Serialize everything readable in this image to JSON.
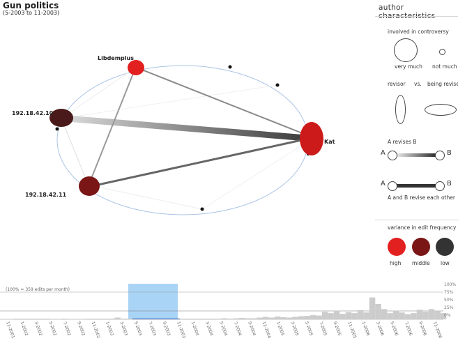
{
  "header": {
    "title": "Gun politics",
    "subtitle": "(5-2003 to 11-2003)"
  },
  "graph": {
    "nodes": [
      {
        "name": "Libdemplus",
        "color": "#e32020",
        "involvement": "very much"
      },
      {
        "name": "192.18.42.10",
        "color": "#4a1a1a",
        "involvement": "very much"
      },
      {
        "name": "Kat",
        "color": "#cc1a1a",
        "involvement": "very much"
      },
      {
        "name": "192.18.42.11",
        "color": "#7a1616",
        "involvement": "very much"
      }
    ],
    "edges": [
      {
        "from": "192.18.42.10",
        "to": "Kat",
        "type": "mutual"
      },
      {
        "from": "192.18.42.11",
        "to": "Kat",
        "type": "mutual"
      },
      {
        "from": "Libdemplus",
        "to": "Kat",
        "type": "one-way"
      },
      {
        "from": "Libdemplus",
        "to": "192.18.42.11",
        "type": "one-way"
      },
      {
        "from": "192.18.42.10",
        "to": "192.18.42.11",
        "type": "faint"
      },
      {
        "from": "Libdemplus",
        "to": "192.18.42.10",
        "type": "faint"
      }
    ]
  },
  "legend": {
    "title": "author characteristics",
    "involved_title": "involved in controversy",
    "very_much": "very much",
    "not_much": "not much",
    "revisor": "revisor",
    "vs": "vs.",
    "being_revised": "being revised",
    "a_revises_b": "A revises B",
    "a": "A",
    "b": "B",
    "mutual": "A and B revise each other",
    "variance_title": "variance in edit frequency",
    "high": "high",
    "middle": "middle",
    "low": "low",
    "colors": {
      "high": "#e32020",
      "middle": "#7a1616",
      "low": "#333333"
    }
  },
  "timeline": {
    "scale_label": "(100% = 359 edits per month)",
    "percent_labels": [
      "100%",
      "75%",
      "50%",
      "25%",
      "0%"
    ],
    "selection": "5-2003 to 11-2003",
    "tick_labels": [
      "11-2001",
      "1-2002",
      "3-2002",
      "5-2002",
      "7-2002",
      "9-2002",
      "11-2002",
      "1-2003",
      "3-2003",
      "5-2003",
      "7-2003",
      "9-2003",
      "11-2003",
      "1-2004",
      "3-2004",
      "5-2004",
      "7-2004",
      "9-2004",
      "11-2004",
      "1-2005",
      "3-2005",
      "5-2005",
      "7-2005",
      "9-2005",
      "11-2005",
      "1-2006",
      "3-2006",
      "5-2006",
      "7-2006",
      "9-2006",
      "11-2006"
    ],
    "monthly_edits_pct": [
      0,
      0,
      0,
      0,
      1,
      0,
      1,
      0,
      1,
      0,
      2,
      0,
      1,
      0,
      1,
      0,
      0,
      0,
      0,
      0,
      1,
      0,
      0,
      0,
      0,
      0,
      0,
      0,
      1,
      0,
      1,
      0,
      1,
      0,
      2,
      0,
      1,
      0,
      5,
      0,
      1,
      0,
      1,
      0,
      1,
      0,
      1,
      0,
      1,
      0,
      1,
      0,
      1,
      0,
      1,
      0,
      1,
      0,
      1,
      0,
      2,
      0,
      2,
      0,
      1,
      0,
      2,
      0,
      1,
      0,
      2,
      0,
      2,
      0,
      3,
      0,
      2,
      0,
      3,
      0,
      4,
      0,
      3,
      0,
      3,
      0,
      5,
      0,
      7,
      0,
      5,
      0,
      8,
      0,
      6,
      0,
      5,
      0,
      7,
      0,
      9,
      0,
      10,
      0,
      12,
      0,
      11,
      0,
      22,
      0,
      18,
      0,
      25,
      0,
      16,
      0,
      21,
      0,
      18,
      0,
      27,
      0,
      20,
      0,
      64,
      0,
      45,
      0,
      30,
      0,
      18,
      0,
      25,
      0,
      20,
      0,
      15,
      0,
      18,
      0,
      28,
      0,
      22,
      0,
      30,
      0,
      25,
      0,
      18
    ]
  }
}
